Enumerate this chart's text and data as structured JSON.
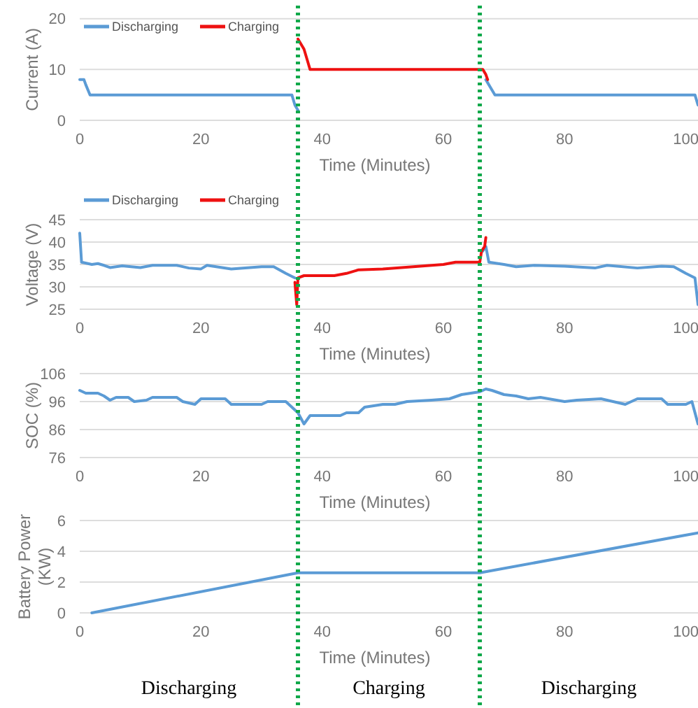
{
  "chart_data": [
    {
      "type": "line",
      "xlabel": "Time (Minutes)",
      "ylabel": "Current (A)",
      "xlim": [
        0,
        102
      ],
      "xticks": [
        0,
        20,
        40,
        60,
        80,
        100
      ],
      "ylim": [
        0,
        20
      ],
      "yticks": [
        0,
        10,
        20
      ],
      "grid": "y",
      "legend": "top left",
      "series": [
        {
          "name": "Discharging",
          "color": "#5b9bd5",
          "x": [
            0,
            0.7,
            1,
            1.7,
            35,
            35.5,
            36,
            37,
            67,
            68,
            68.5,
            101.5,
            102
          ],
          "values": [
            8,
            8,
            7,
            5,
            5,
            3,
            2,
            null,
            8,
            6,
            5,
            5,
            3
          ]
        },
        {
          "name": "Charging",
          "color": "#ee1111",
          "x": [
            36,
            36.5,
            37,
            37.5,
            38,
            66.5,
            67,
            67.3
          ],
          "values": [
            16,
            15,
            14,
            12,
            10,
            10,
            9,
            8
          ]
        }
      ],
      "ref_lines": [
        {
          "axis": "x",
          "value": 36,
          "color": "#11a84a",
          "line_style": "dotted"
        },
        {
          "axis": "x",
          "value": 66,
          "color": "#11a84a",
          "line_style": "dotted"
        }
      ]
    },
    {
      "type": "line",
      "xlabel": "Time (Minutes)",
      "ylabel": "Voltage (V)",
      "xlim": [
        0,
        102
      ],
      "xticks": [
        0,
        20,
        40,
        60,
        80,
        100
      ],
      "ylim": [
        25,
        45
      ],
      "yticks": [
        25,
        30,
        35,
        40,
        45
      ],
      "grid": "y",
      "legend": "top left",
      "series": [
        {
          "name": "Discharging",
          "color": "#5b9bd5",
          "x": [
            0,
            0.3,
            2,
            3,
            4,
            5,
            7,
            10,
            12,
            16,
            18,
            20,
            21,
            25,
            30,
            32,
            34,
            35.5,
            36,
            66.5,
            67,
            67.5,
            70,
            72,
            75,
            80,
            85,
            87,
            92,
            96,
            98,
            100,
            101.5,
            102
          ],
          "values": [
            42,
            35.5,
            35,
            35.2,
            34.8,
            34.3,
            34.7,
            34.3,
            34.8,
            34.8,
            34.2,
            34,
            34.8,
            34,
            34.5,
            34.5,
            33,
            32,
            null,
            38,
            39,
            35.5,
            35,
            34.5,
            34.8,
            34.6,
            34.2,
            34.8,
            34.2,
            34.6,
            34.5,
            33,
            32,
            26
          ]
        },
        {
          "name": "Charging",
          "color": "#ee1111",
          "x": [
            35.5,
            35.8,
            36,
            37,
            42,
            44,
            46,
            50,
            55,
            60,
            62,
            66,
            66.3,
            66.8,
            67
          ],
          "values": [
            31,
            26,
            32,
            32.5,
            32.5,
            33,
            33.8,
            34,
            34.5,
            35,
            35.5,
            35.5,
            38,
            39,
            41
          ]
        }
      ],
      "ref_lines": [
        {
          "axis": "x",
          "value": 36,
          "color": "#11a84a",
          "line_style": "dotted"
        },
        {
          "axis": "x",
          "value": 66,
          "color": "#11a84a",
          "line_style": "dotted"
        }
      ]
    },
    {
      "type": "line",
      "xlabel": "Time (Minutes)",
      "ylabel": "SOC (%)",
      "xlim": [
        0,
        102
      ],
      "xticks": [
        0,
        20,
        40,
        60,
        80,
        100
      ],
      "ylim": [
        76,
        106
      ],
      "yticks": [
        76,
        86,
        96,
        106
      ],
      "grid": "y",
      "series": [
        {
          "color": "#5b9bd5",
          "x": [
            0,
            1,
            3,
            4,
            5,
            6,
            8,
            9,
            11,
            12,
            16,
            17,
            19,
            20,
            24,
            25,
            30,
            31,
            34,
            36,
            37,
            38,
            43,
            44,
            46,
            47,
            50,
            52,
            54,
            58,
            61,
            63,
            66,
            67,
            68,
            70,
            72,
            74,
            76,
            80,
            82,
            86,
            88,
            90,
            92,
            96,
            97,
            100,
            101,
            102
          ],
          "values": [
            100,
            99,
            99,
            98,
            96.5,
            97.5,
            97.5,
            96,
            96.5,
            97.5,
            97.5,
            96,
            95,
            97,
            97,
            95,
            95,
            96,
            96,
            92,
            88,
            91,
            91,
            92,
            92,
            94,
            95,
            95,
            96,
            96.5,
            97,
            98.5,
            99.5,
            100.5,
            100,
            98.5,
            98,
            97,
            97.5,
            96,
            96.5,
            97,
            96,
            95,
            97,
            97,
            95,
            95,
            96,
            88
          ]
        }
      ],
      "ref_lines": [
        {
          "axis": "x",
          "value": 36,
          "color": "#11a84a",
          "line_style": "dotted"
        },
        {
          "axis": "x",
          "value": 66,
          "color": "#11a84a",
          "line_style": "dotted"
        }
      ]
    },
    {
      "type": "line",
      "xlabel": "Time (Minutes)",
      "ylabel": "Battery Power (KW)",
      "xlim": [
        0,
        102
      ],
      "xticks": [
        0,
        20,
        40,
        60,
        80,
        100
      ],
      "ylim": [
        0,
        6
      ],
      "yticks": [
        0,
        2,
        4,
        6
      ],
      "grid": "y",
      "series": [
        {
          "color": "#5b9bd5",
          "x": [
            2,
            36,
            66,
            102
          ],
          "values": [
            0,
            2.6,
            2.6,
            5.2
          ]
        }
      ],
      "ref_lines": [
        {
          "axis": "x",
          "value": 36,
          "color": "#11a84a",
          "line_style": "dotted"
        },
        {
          "axis": "x",
          "value": 66,
          "color": "#11a84a",
          "line_style": "dotted"
        }
      ],
      "annotations": [
        "Discharging",
        "Charging",
        "Discharging"
      ]
    }
  ]
}
